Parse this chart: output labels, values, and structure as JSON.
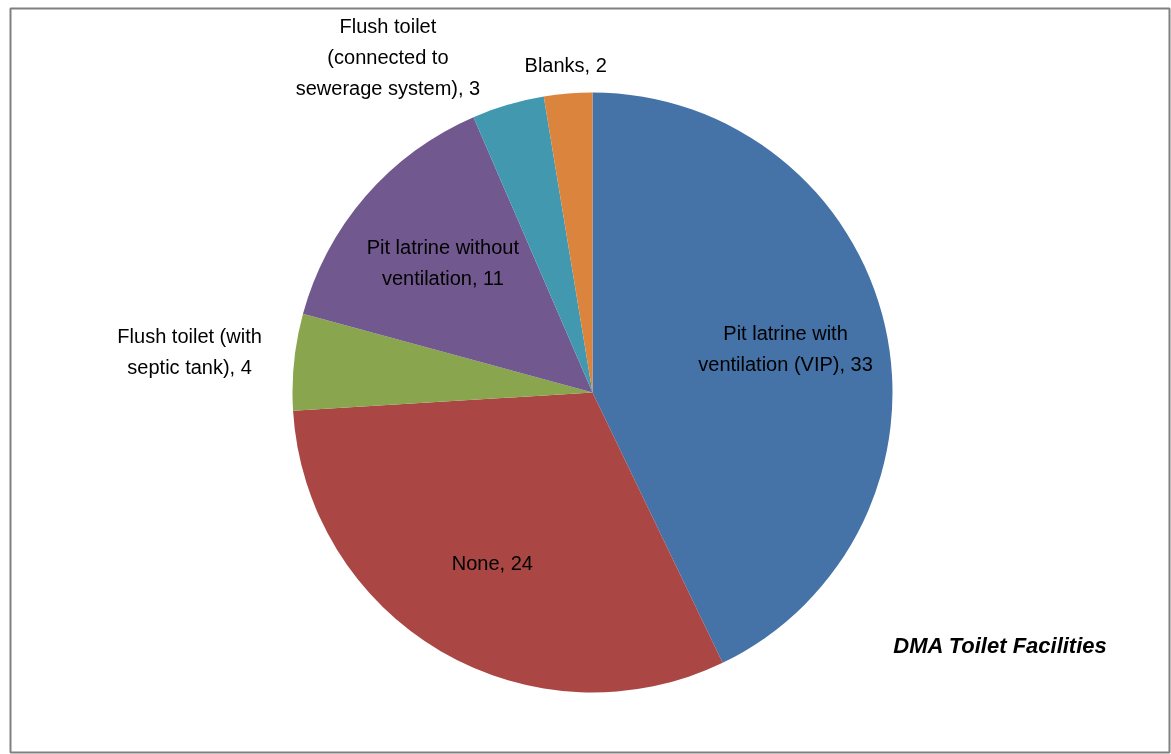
{
  "chart_data": {
    "type": "pie",
    "title": "DMA Toilet Facilities",
    "categories": [
      "Pit latrine with ventilation (VIP)",
      "None",
      "Flush toilet (with septic tank)",
      "Pit latrine without ventilation",
      "Flush toilet (connected to sewerage system)",
      "Blanks"
    ],
    "values": [
      33,
      24,
      4,
      11,
      3,
      2
    ],
    "value_labels": [
      ", 33",
      ", 24",
      ", 4",
      ", 11",
      ", 3",
      ", 2"
    ],
    "colors": [
      "#4572a7",
      "#aa4643",
      "#89a54e",
      "#71588f",
      "#4198af",
      "#db843d"
    ]
  }
}
